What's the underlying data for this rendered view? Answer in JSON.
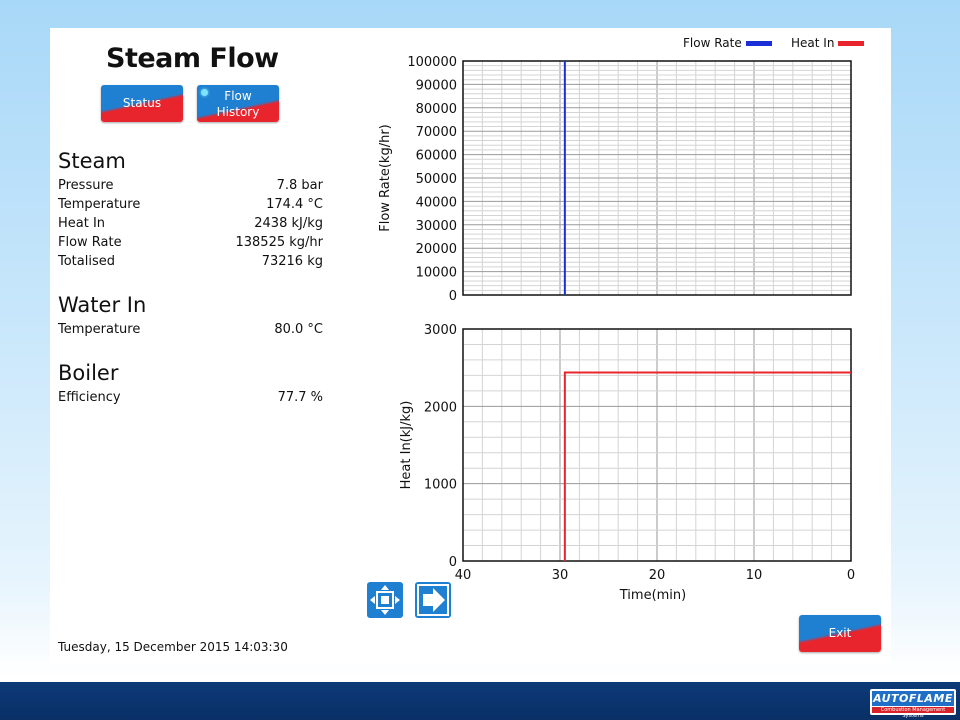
{
  "page": {
    "title": "Steam Flow",
    "date": "Tuesday, 15 December 2015  14:03:30"
  },
  "buttons": {
    "status": "Status",
    "flow_history_line1": "Flow",
    "flow_history_line2": "History",
    "exit": "Exit"
  },
  "steam": {
    "heading": "Steam",
    "rows": [
      {
        "label": "Pressure",
        "value": "7.8 bar"
      },
      {
        "label": "Temperature",
        "value": "174.4 °C"
      },
      {
        "label": "Heat In",
        "value": "2438 kJ/kg"
      },
      {
        "label": "Flow Rate",
        "value": "138525 kg/hr"
      },
      {
        "label": "Totalised",
        "value": "73216 kg"
      }
    ]
  },
  "water_in": {
    "heading": "Water In",
    "rows": [
      {
        "label": "Temperature",
        "value": "80.0 °C"
      }
    ]
  },
  "boiler": {
    "heading": "Boiler",
    "rows": [
      {
        "label": "Efficiency",
        "value": "77.7 %"
      }
    ]
  },
  "colors": {
    "flow_rate": "#1a2fd8",
    "heat_in": "#e8242c",
    "button_blue": "#1f7fd0",
    "button_red": "#e8242c"
  },
  "icons": {
    "zoom": "expand-arrows-icon",
    "next": "arrow-right-icon"
  },
  "logo": {
    "name": "AUTOFLAME",
    "tagline": "Combustion Management Systems"
  },
  "chart_data": [
    {
      "type": "line",
      "ylabel": "Flow Rate(kg/hr)",
      "ylim": [
        0,
        100000
      ],
      "yticks": [
        0,
        10000,
        20000,
        30000,
        40000,
        50000,
        60000,
        70000,
        80000,
        90000,
        100000
      ],
      "xlim": [
        40,
        0
      ],
      "legend": "top-right",
      "series": [
        {
          "name": "Flow Rate",
          "color": "#1a2fd8",
          "x": [
            29.5,
            29.5
          ],
          "y": [
            0,
            100000
          ]
        }
      ]
    },
    {
      "type": "line",
      "xlabel": "Time(min)",
      "ylabel": "Heat In(kJ/kg)",
      "xlim": [
        40,
        0
      ],
      "ylim": [
        0,
        3000
      ],
      "xticks": [
        40,
        30,
        20,
        10,
        0
      ],
      "yticks": [
        0,
        1000,
        2000,
        3000
      ],
      "legend": "top-right",
      "series": [
        {
          "name": "Heat In",
          "color": "#e8242c",
          "x": [
            29.5,
            29.5,
            29.5,
            0
          ],
          "y": [
            0,
            1200,
            2438,
            2438
          ]
        }
      ]
    }
  ]
}
